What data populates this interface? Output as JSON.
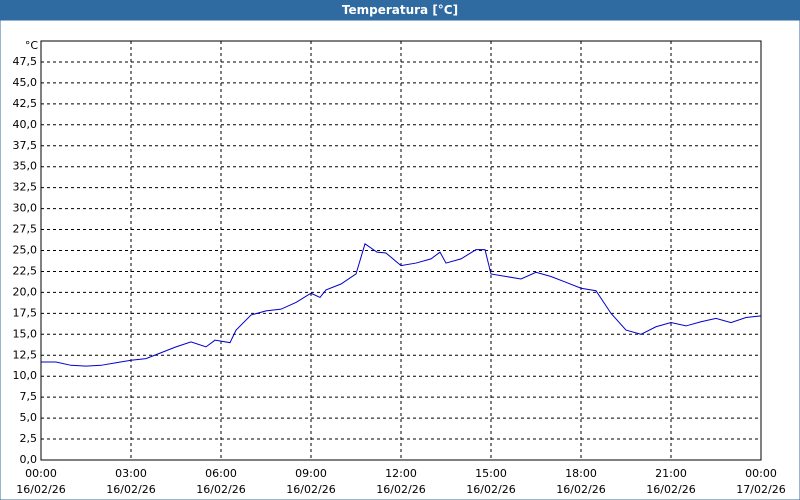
{
  "chart_data": {
    "type": "line",
    "title": "Temperatura [°C]",
    "y_unit": "°C",
    "x": [
      0,
      0.5,
      1,
      1.5,
      2,
      2.5,
      3,
      3.5,
      4,
      4.5,
      5,
      5.5,
      5.8,
      6.3,
      6.5,
      7,
      7.5,
      8,
      8.5,
      9,
      9.3,
      9.5,
      10,
      10.5,
      10.8,
      11.2,
      11.5,
      12,
      12.5,
      13,
      13.3,
      13.5,
      14,
      14.5,
      14.8,
      15,
      15.5,
      16,
      16.5,
      17,
      17.5,
      18,
      18.5,
      19,
      19.5,
      20,
      20.5,
      21,
      21.5,
      22,
      22.5,
      23,
      23.5,
      24
    ],
    "series": [
      {
        "name": "Temperatura",
        "color": "#0000cc",
        "values": [
          11.7,
          11.7,
          11.3,
          11.2,
          11.3,
          11.6,
          11.9,
          12.1,
          12.8,
          13.5,
          14.1,
          13.5,
          14.3,
          14.0,
          15.5,
          17.3,
          17.8,
          18.0,
          18.8,
          19.9,
          19.4,
          20.3,
          21.0,
          22.2,
          25.8,
          24.8,
          24.7,
          23.2,
          23.5,
          24.0,
          24.8,
          23.5,
          24.0,
          25.1,
          25.1,
          22.2,
          21.9,
          21.6,
          22.4,
          21.9,
          21.2,
          20.5,
          20.2,
          17.5,
          15.5,
          15.0,
          15.9,
          16.4,
          16.0,
          16.5,
          16.9,
          16.4,
          17.0,
          17.2
        ]
      }
    ],
    "xlim": [
      0,
      24
    ],
    "xticks": [
      {
        "value": 0,
        "label": "00:00",
        "date": "16/02/26"
      },
      {
        "value": 3,
        "label": "03:00",
        "date": "16/02/26"
      },
      {
        "value": 6,
        "label": "06:00",
        "date": "16/02/26"
      },
      {
        "value": 9,
        "label": "09:00",
        "date": "16/02/26"
      },
      {
        "value": 12,
        "label": "12:00",
        "date": "16/02/26"
      },
      {
        "value": 15,
        "label": "15:00",
        "date": "16/02/26"
      },
      {
        "value": 18,
        "label": "18:00",
        "date": "16/02/26"
      },
      {
        "value": 21,
        "label": "21:00",
        "date": "16/02/26"
      },
      {
        "value": 24,
        "label": "00:00",
        "date": "17/02/26"
      }
    ],
    "ylim": [
      0,
      50
    ],
    "yticks": [
      {
        "value": 0,
        "label": "0,0"
      },
      {
        "value": 2.5,
        "label": "2,5"
      },
      {
        "value": 5,
        "label": "5,0"
      },
      {
        "value": 7.5,
        "label": "7,5"
      },
      {
        "value": 10,
        "label": "10,0"
      },
      {
        "value": 12.5,
        "label": "12,5"
      },
      {
        "value": 15,
        "label": "15,0"
      },
      {
        "value": 17.5,
        "label": "17,5"
      },
      {
        "value": 20,
        "label": "20,0"
      },
      {
        "value": 22.5,
        "label": "22,5"
      },
      {
        "value": 25,
        "label": "25,0"
      },
      {
        "value": 27.5,
        "label": "27,5"
      },
      {
        "value": 30,
        "label": "30,0"
      },
      {
        "value": 32.5,
        "label": "32,5"
      },
      {
        "value": 35,
        "label": "35,0"
      },
      {
        "value": 37.5,
        "label": "37,5"
      },
      {
        "value": 40,
        "label": "40,0"
      },
      {
        "value": 42.5,
        "label": "42,5"
      },
      {
        "value": 45,
        "label": "45,0"
      },
      {
        "value": 47.5,
        "label": "47,5"
      }
    ],
    "grid": true
  }
}
